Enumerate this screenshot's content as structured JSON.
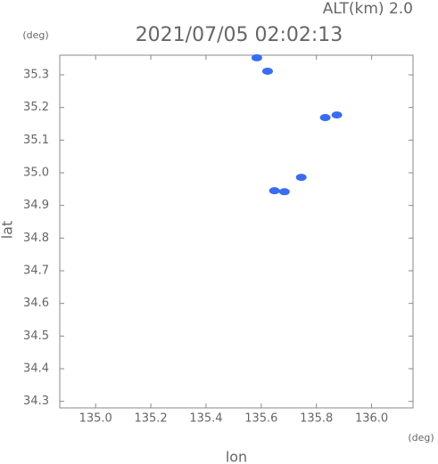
{
  "chart_data": {
    "type": "scatter",
    "title": "2021/07/05 02:02:13",
    "annotation": "ALT(km) 2.0",
    "y_unit": "(deg)",
    "x_unit": "(deg)",
    "xlabel": "lon",
    "ylabel": "lat",
    "xlim": [
      134.87,
      136.15
    ],
    "ylim": [
      34.28,
      35.36
    ],
    "xticks": [
      {
        "value": 135.0,
        "label": "135.0"
      },
      135.2,
      135.4,
      135.6,
      135.8,
      {
        "value": 136.0,
        "label": "136.0"
      }
    ],
    "yticks": [
      34.3,
      34.4,
      34.5,
      34.6,
      34.7,
      34.8,
      34.9,
      {
        "value": 35.0,
        "label": "35.0"
      },
      35.1,
      35.2,
      35.3
    ],
    "x": [
      135.584,
      135.623,
      135.832,
      135.874,
      135.745,
      135.684,
      135.648
    ],
    "series": [
      {
        "color": "#3a6cf0",
        "values": [
          35.352,
          35.311,
          35.169,
          35.177,
          34.986,
          34.942,
          34.945
        ]
      }
    ]
  }
}
